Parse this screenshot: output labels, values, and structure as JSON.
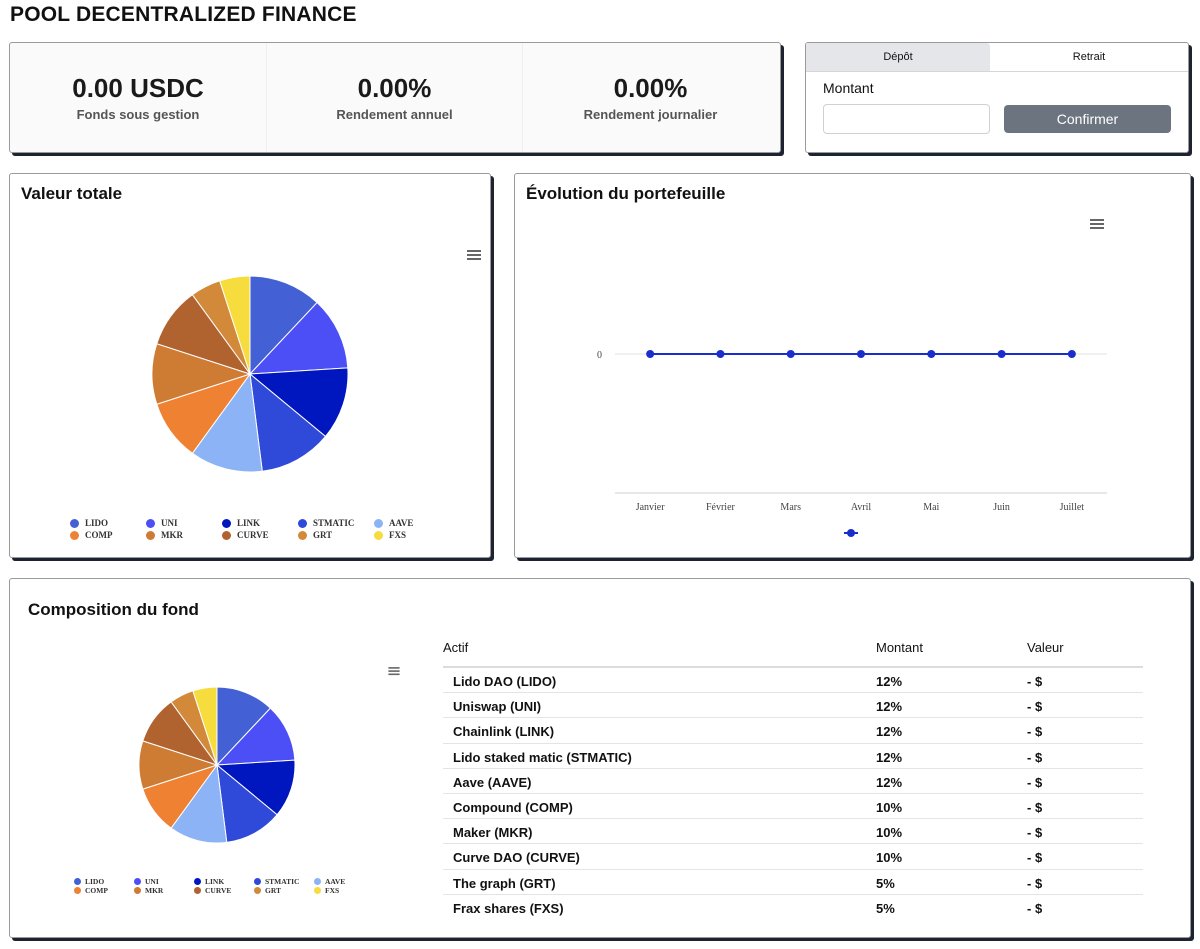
{
  "page": {
    "title": "POOL DECENTRALIZED FINANCE"
  },
  "stats": [
    {
      "value": "0.00 USDC",
      "label": "Fonds sous gestion"
    },
    {
      "value": "0.00%",
      "label": "Rendement annuel"
    },
    {
      "value": "0.00%",
      "label": "Rendement journalier"
    }
  ],
  "deposit": {
    "tabs": [
      "Dépôt",
      "Retrait"
    ],
    "active_tab": "Dépôt",
    "amount_label": "Montant",
    "amount_value": "",
    "confirm_label": "Confirmer"
  },
  "colors": {
    "LIDO": "#4361d4",
    "UNI": "#4c4ff5",
    "LINK": "#0016bf",
    "STMATIC": "#2f49d9",
    "AAVE": "#8db3f7",
    "COMP": "#ee8232",
    "MKR": "#ce7c33",
    "CURVE": "#b0622f",
    "GRT": "#d28a3a",
    "FXS": "#f6dc3d",
    "line": "#1a2ecb"
  },
  "value_chart": {
    "title": "Valeur totale",
    "menu_icon": "hamburger-menu-icon"
  },
  "evolution_chart": {
    "title": "Évolution du portefeuille",
    "menu_icon": "hamburger-menu-icon"
  },
  "composition": {
    "title": "Composition du fond",
    "menu_icon": "hamburger-menu-icon",
    "table": {
      "headers": [
        "Actif",
        "Montant",
        "Valeur"
      ],
      "rows": [
        [
          "Lido DAO (LIDO)",
          "12%",
          "- $"
        ],
        [
          "Uniswap (UNI)",
          "12%",
          "- $"
        ],
        [
          "Chainlink (LINK)",
          "12%",
          "- $"
        ],
        [
          "Lido staked matic (STMATIC)",
          "12%",
          "- $"
        ],
        [
          "Aave (AAVE)",
          "12%",
          "- $"
        ],
        [
          "Compound (COMP)",
          "10%",
          "- $"
        ],
        [
          "Maker (MKR)",
          "10%",
          "- $"
        ],
        [
          "Curve DAO (CURVE)",
          "10%",
          "- $"
        ],
        [
          "The graph (GRT)",
          "5%",
          "- $"
        ],
        [
          "Frax shares (FXS)",
          "5%",
          "- $"
        ]
      ]
    }
  },
  "chart_data": [
    {
      "type": "pie",
      "title": "Valeur totale",
      "categories": [
        "LIDO",
        "UNI",
        "LINK",
        "STMATIC",
        "AAVE",
        "COMP",
        "MKR",
        "CURVE",
        "GRT",
        "FXS"
      ],
      "values": [
        12,
        12,
        12,
        12,
        12,
        10,
        10,
        10,
        5,
        5
      ],
      "legend": "bottom"
    },
    {
      "type": "line",
      "title": "Évolution du portefeuille",
      "categories": [
        "Janvier",
        "Février",
        "Mars",
        "Avril",
        "Mai",
        "Juin",
        "Juillet"
      ],
      "series": [
        {
          "name": "",
          "values": [
            0,
            0,
            0,
            0,
            0,
            0,
            0
          ]
        }
      ],
      "ytick_labels": [
        "0"
      ],
      "legend": "bottom"
    },
    {
      "type": "pie",
      "title": "Composition du fond",
      "categories": [
        "LIDO",
        "UNI",
        "LINK",
        "STMATIC",
        "AAVE",
        "COMP",
        "MKR",
        "CURVE",
        "GRT",
        "FXS"
      ],
      "values": [
        12,
        12,
        12,
        12,
        12,
        10,
        10,
        10,
        5,
        5
      ],
      "legend": "bottom"
    }
  ]
}
